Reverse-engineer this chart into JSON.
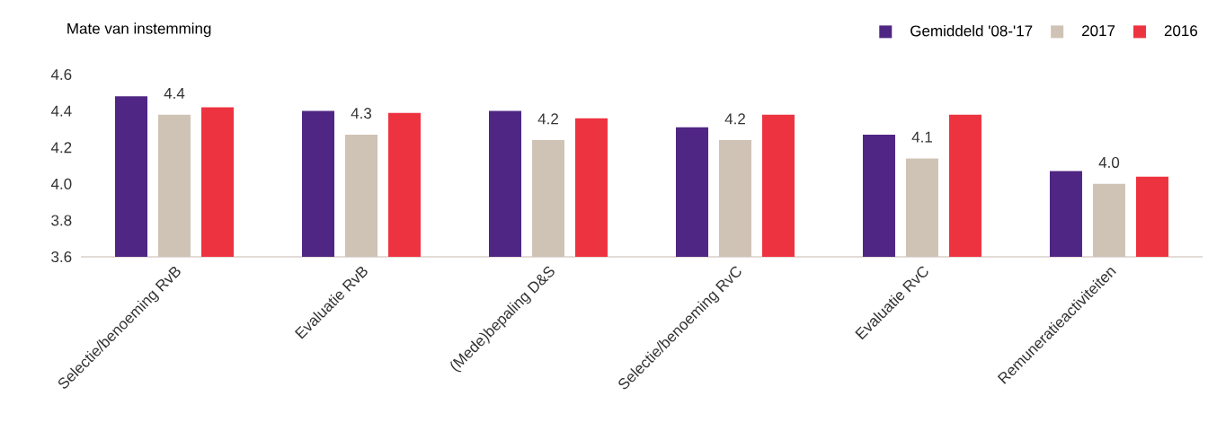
{
  "chart_data": {
    "type": "bar",
    "ylabel": "Mate van instemming",
    "categories": [
      "Selectie/benoeming RvB",
      "Evaluatie RvB",
      "(Mede)bepaling D&S",
      "Selectie/benoeming RvC",
      "Evaluatie RvC",
      "Remuneratieactiviteiten"
    ],
    "series": [
      {
        "name": "Gemiddeld '08-'17",
        "color": "#4f2683",
        "values": [
          4.48,
          4.4,
          4.4,
          4.31,
          4.27,
          4.07
        ]
      },
      {
        "name": "2017",
        "color": "#cfc3b6",
        "values": [
          4.38,
          4.27,
          4.24,
          4.24,
          4.14,
          4.0
        ],
        "value_labels": [
          "4.4",
          "4.3",
          "4.2",
          "4.2",
          "4.1",
          "4.0"
        ]
      },
      {
        "name": "2016",
        "color": "#ee3340",
        "values": [
          4.42,
          4.39,
          4.36,
          4.38,
          4.38,
          4.04
        ]
      }
    ],
    "ylim": [
      3.6,
      4.6
    ],
    "yticks": [
      3.6,
      3.8,
      {
        "value": 4.0,
        "label": "4.0"
      },
      4.2,
      4.4,
      4.6
    ],
    "legend": "top right"
  }
}
